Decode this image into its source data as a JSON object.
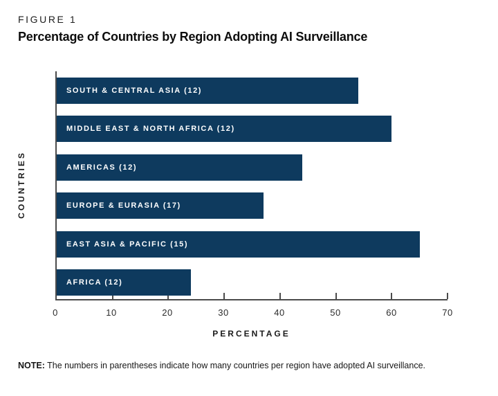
{
  "figure": {
    "kicker": "FIGURE 1",
    "title": "Percentage of Countries by Region Adopting AI Surveillance",
    "note_label": "NOTE:",
    "note_text": " The numbers in parentheses indicate how many countries per region have adopted AI surveillance."
  },
  "chart_data": {
    "type": "bar",
    "orientation": "horizontal",
    "title": "Percentage of Countries by Region Adopting AI Surveillance",
    "categories": [
      "SOUTH & CENTRAL ASIA (12)",
      "MIDDLE EAST & NORTH AFRICA (12)",
      "AMERICAS (12)",
      "EUROPE & EURASIA (17)",
      "EAST ASIA & PACIFIC (15)",
      "AFRICA (12)"
    ],
    "values": [
      54,
      60,
      44,
      37,
      65,
      24
    ],
    "xlabel": "PERCENTAGE",
    "ylabel": "COUNTRIES",
    "xlim": [
      0,
      70
    ],
    "xticks": [
      0,
      10,
      20,
      30,
      40,
      50,
      60,
      70
    ],
    "grid": false,
    "legend": false,
    "bar_color": "#0e3a5e",
    "axis_color": "#4a4a4a",
    "bar_label_color": "#ffffff"
  }
}
